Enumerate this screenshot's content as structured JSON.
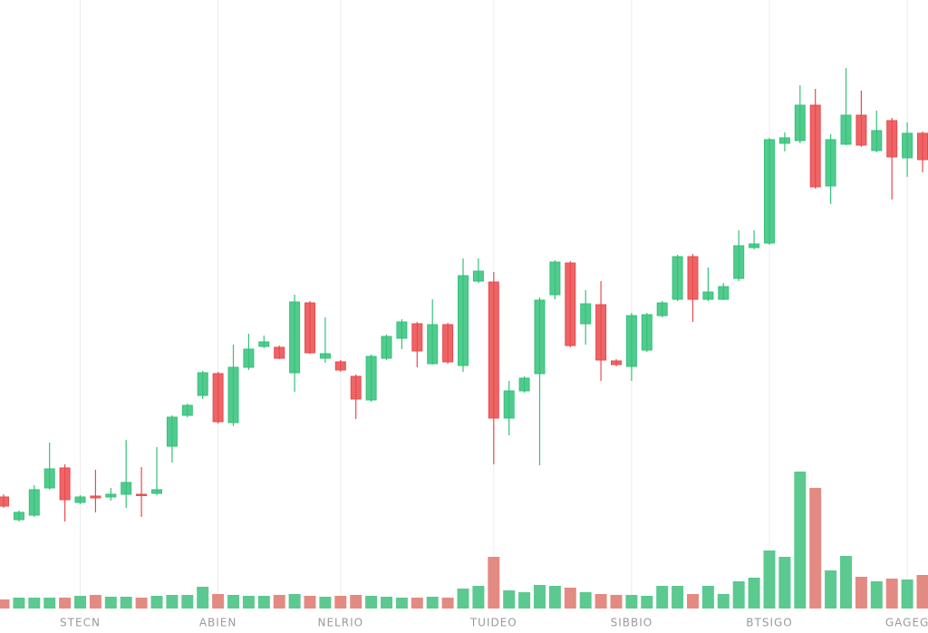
{
  "chart_data": {
    "type": "candlestick",
    "categories": [
      null,
      null,
      null,
      null,
      null,
      "STECN",
      null,
      null,
      null,
      null,
      null,
      null,
      null,
      null,
      "ABIEN",
      null,
      null,
      null,
      null,
      null,
      null,
      null,
      "NELRIO",
      null,
      null,
      null,
      null,
      null,
      null,
      null,
      null,
      null,
      "TUIDEO",
      null,
      null,
      null,
      null,
      null,
      null,
      null,
      null,
      "SIBBIO",
      null,
      null,
      null,
      null,
      null,
      null,
      null,
      null,
      "BTSIGO",
      null,
      null,
      null,
      null,
      null,
      null,
      null,
      null,
      "GAGEG",
      null
    ],
    "open": [
      152,
      127,
      132,
      162,
      184,
      146,
      153,
      152,
      155,
      155,
      156,
      208,
      242,
      264,
      288,
      234,
      295,
      318,
      317,
      289,
      366,
      305,
      301,
      285,
      259,
      305,
      327,
      343,
      299,
      342,
      297,
      390,
      389,
      239,
      269,
      288,
      375,
      410,
      343,
      364,
      302,
      296,
      314,
      352,
      370,
      417,
      370,
      370,
      393,
      427,
      432,
      542,
      545,
      584,
      495,
      541,
      573,
      534,
      567,
      526,
      553
    ],
    "high": [
      155,
      137,
      165,
      212,
      188,
      154,
      182,
      162,
      215,
      185,
      207,
      242,
      255,
      291,
      290,
      320,
      332,
      330,
      319,
      375,
      368,
      350,
      303,
      287,
      309,
      331,
      348,
      345,
      370,
      344,
      415,
      415,
      400,
      280,
      285,
      372,
      413,
      412,
      380,
      390,
      304,
      355,
      355,
      368,
      419,
      420,
      405,
      388,
      446,
      446,
      548,
      554,
      606,
      602,
      552,
      625,
      600,
      578,
      570,
      565,
      555
    ],
    "low": [
      140,
      125,
      130,
      160,
      125,
      144,
      135,
      148,
      140,
      130,
      154,
      190,
      240,
      260,
      233,
      230,
      292,
      316,
      304,
      268,
      310,
      300,
      290,
      238,
      257,
      303,
      315,
      295,
      298,
      299,
      290,
      388,
      188,
      220,
      267,
      187,
      370,
      317,
      320,
      280,
      296,
      280,
      312,
      350,
      368,
      345,
      368,
      369,
      390,
      425,
      430,
      533,
      542,
      492,
      475,
      540,
      538,
      532,
      480,
      505,
      510
    ],
    "close": [
      142,
      135,
      160,
      183,
      149,
      152,
      151,
      155,
      168,
      154,
      160,
      240,
      253,
      289,
      235,
      295,
      315,
      323,
      305,
      367,
      311,
      310,
      292,
      260,
      307,
      329,
      345,
      313,
      342,
      301,
      396,
      401,
      239,
      269,
      283,
      369,
      411,
      319,
      365,
      303,
      298,
      352,
      353,
      366,
      417,
      370,
      378,
      384,
      429,
      431,
      546,
      548,
      584,
      494,
      546,
      573,
      540,
      556,
      527,
      553,
      524
    ],
    "volume": [
      10,
      12,
      12,
      12,
      12,
      14,
      15,
      13,
      13,
      12,
      14,
      15,
      15,
      24,
      16,
      15,
      14,
      14,
      15,
      16,
      14,
      13,
      14,
      15,
      14,
      13,
      12,
      12,
      13,
      12,
      22,
      25,
      57,
      20,
      18,
      26,
      25,
      23,
      18,
      16,
      15,
      15,
      14,
      25,
      25,
      16,
      25,
      16,
      30,
      34,
      64,
      57,
      151,
      133,
      42,
      58,
      35,
      30,
      33,
      32,
      37
    ],
    "ylim": [
      0,
      700
    ],
    "volume_ylim": [
      0,
      700
    ],
    "up_color": "#34c27a",
    "down_color": "#ea4a4c",
    "volume_up_color": "#5cc990",
    "volume_down_color": "#e38b82",
    "grid": true
  }
}
